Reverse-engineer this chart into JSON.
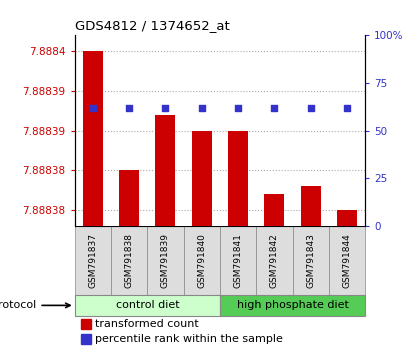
{
  "title": "GDS4812 / 1374652_at",
  "samples": [
    "GSM791837",
    "GSM791838",
    "GSM791839",
    "GSM791840",
    "GSM791841",
    "GSM791842",
    "GSM791843",
    "GSM791844"
  ],
  "bar_values": [
    7.8884,
    7.888385,
    7.888392,
    7.88839,
    7.88839,
    7.888382,
    7.888383,
    7.88838
  ],
  "percentile_values": [
    62,
    62,
    62,
    62,
    62,
    62,
    62,
    62
  ],
  "ymin": 7.888378,
  "ymax": 7.888402,
  "left_yticks": [
    7.88838,
    7.888385,
    7.88839,
    7.888395,
    7.8884
  ],
  "left_ytick_labels": [
    "7.88838",
    "7.88838",
    "7.88839",
    "7.88839",
    "7.8884"
  ],
  "right_yticks": [
    0,
    25,
    50,
    75,
    100
  ],
  "right_ytick_labels": [
    "0",
    "25",
    "50",
    "75",
    "100%"
  ],
  "bar_color": "#cc0000",
  "dot_color": "#3333cc",
  "group1_label": "control diet",
  "group2_label": "high phosphate diet",
  "group1_color": "#ccffcc",
  "group2_color": "#55cc55",
  "legend_bar_label": "transformed count",
  "legend_dot_label": "percentile rank within the sample",
  "protocol_label": "protocol",
  "left_axis_color": "#cc0000",
  "right_axis_color": "#3333cc"
}
